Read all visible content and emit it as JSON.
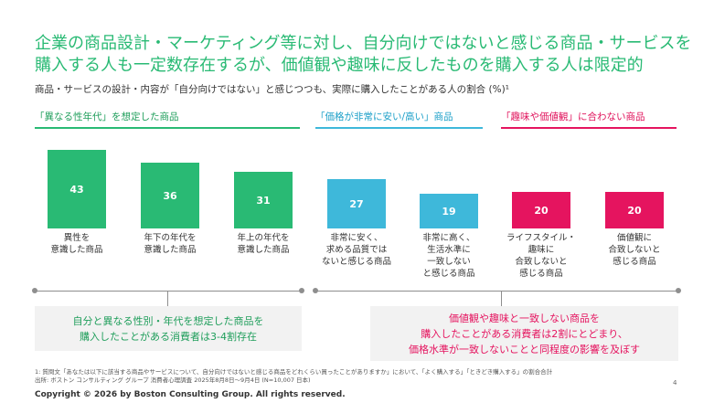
{
  "title": "企業の商品設計・マーケティング等に対し、自分向けではないと感じる商品・サービスを購入する人も一定数存在するが、価値観や趣味に反したものを購入する人は限定的",
  "subtitle": "商品・サービスの設計・内容が「自分向けではない」と感じつつも、実際に購入したことがある人の割合 (%)¹",
  "colors": {
    "green": "#29BA74",
    "blue": "#3EB8DA",
    "pink": "#E5145F"
  },
  "group_headers": [
    {
      "label": "「異なる性年代」を想定した商品"
    },
    {
      "label": "「価格が非常に安い/高い」商品"
    },
    {
      "label": "「趣味や価値観」に合わない商品"
    }
  ],
  "chart_data": {
    "type": "bar",
    "title": "商品・サービスの設計・内容が「自分向けではない」と感じつつも、実際に購入したことがある人の割合 (%)",
    "ylabel": "%",
    "ylim": [
      0,
      50
    ],
    "categories": [
      "異性を\n意識した商品",
      "年下の年代を\n意識した商品",
      "年上の年代を\n意識した商品",
      "非常に安く、\n求める品質では\nないと感じる商品",
      "非常に高く、\n生活水準に\n一致しない\nと感じる商品",
      "ライフスタイル・\n趣味に\n合致しないと\n感じる商品",
      "価値観に\n合致しないと\n感じる商品"
    ],
    "values": [
      43,
      36,
      31,
      27,
      19,
      20,
      20
    ],
    "groups": [
      "green",
      "green",
      "green",
      "blue",
      "blue",
      "pink",
      "pink"
    ]
  },
  "callouts": {
    "green": "自分と異なる性別・年代を想定した商品を\n購入したことがある消費者は3-4割存在",
    "pink": "価値観や趣味と一致しない商品を\n購入したことがある消費者は2割にとどまり、\n価格水準が一致しないことと同程度の影響を及ぼす"
  },
  "footnote": "1: 質問文「あなたは以下に該当する商品やサービスについて、自分向けではないと感じる商品をどれくらい買ったことがありますか」において、「よく購入する」「ときどき購入する」の割合合計\n出所: ボストン コンサルティング グループ 消費者心理調査 2025年8月8日～9月4日 (N=10,007 日本)",
  "copyright": "Copyright © 2026 by Boston Consulting Group. All rights reserved.",
  "page_number": "4"
}
